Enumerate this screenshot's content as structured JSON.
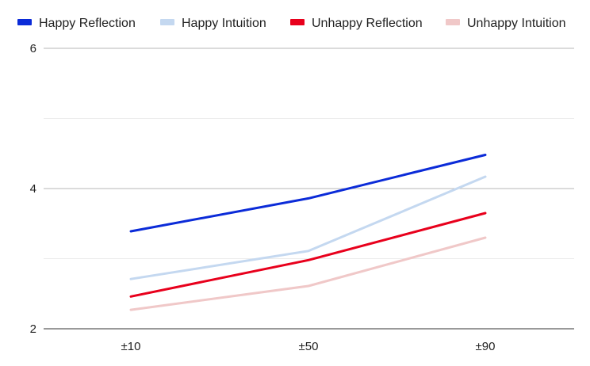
{
  "chart_data": {
    "type": "line",
    "title": "",
    "xlabel": "",
    "ylabel": "",
    "categories": [
      "±10",
      "±50",
      "±90"
    ],
    "ylim": [
      2,
      6
    ],
    "yticks": [
      2,
      4,
      6
    ],
    "minor_gridlines": true,
    "legend_position": "top",
    "series": [
      {
        "name": "Happy Reflection",
        "color": "#0b2bd8",
        "values": [
          3.39,
          3.86,
          4.48
        ]
      },
      {
        "name": "Happy Intuition",
        "color": "#c4d8f0",
        "values": [
          2.71,
          3.11,
          4.17
        ]
      },
      {
        "name": "Unhappy Reflection",
        "color": "#e8001c",
        "values": [
          2.46,
          2.98,
          3.65
        ]
      },
      {
        "name": "Unhappy Intuition",
        "color": "#f0c8c8",
        "values": [
          2.27,
          2.61,
          3.3
        ]
      }
    ]
  }
}
